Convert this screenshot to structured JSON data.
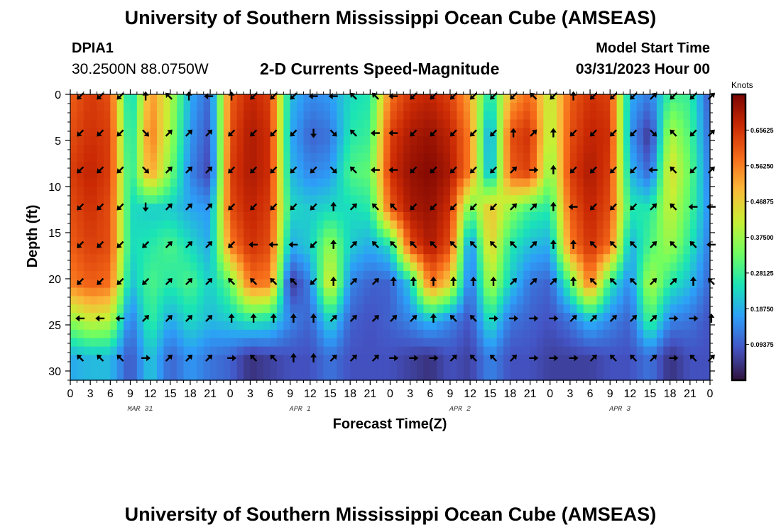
{
  "header": {
    "title": "University of Southern Mississippi Ocean Cube (AMSEAS)",
    "station_id": "DPIA1",
    "coordinates": "30.2500N  88.0750W",
    "subtitle": "2-D Currents Speed-Magnitude",
    "model_start_label": "Model Start Time",
    "model_start_value": "03/31/2023 Hour 00"
  },
  "footer": {
    "title": "University of Southern Mississippi Ocean Cube (AMSEAS)"
  },
  "colorbar": {
    "unit": "Knots",
    "ticks": [
      "0.65625",
      "0.56250",
      "0.46875",
      "0.37500",
      "0.28125",
      "0.18750",
      "0.09375"
    ],
    "tick_values": [
      0.65625,
      0.5625,
      0.46875,
      0.375,
      0.28125,
      0.1875,
      0.09375
    ],
    "range": [
      0,
      0.75
    ],
    "stops": [
      "#30123b",
      "#4454c4",
      "#2d9ef8",
      "#1ae4b6",
      "#71fe5f",
      "#c8ef34",
      "#faba39",
      "#f66b19",
      "#cb2a04",
      "#7a0403"
    ]
  },
  "chart_data": {
    "type": "heatmap",
    "title": "2-D Currents Speed-Magnitude",
    "xlabel": "Forecast Time(Z)",
    "ylabel": "Depth (ft)",
    "x_range_hours": [
      0,
      96
    ],
    "ylim": [
      0,
      31
    ],
    "y_ticks": [
      "0",
      "5",
      "10",
      "15",
      "20",
      "25",
      "30"
    ],
    "y_tick_values": [
      0,
      5,
      10,
      15,
      20,
      25,
      30
    ],
    "x_tick_labels": [
      "0",
      "3",
      "6",
      "9",
      "12",
      "15",
      "18",
      "21",
      "0",
      "3",
      "6",
      "9",
      "12",
      "15",
      "18",
      "21",
      "0",
      "3",
      "6",
      "9",
      "12",
      "15",
      "18",
      "21",
      "0",
      "3",
      "6",
      "9",
      "12",
      "15",
      "18",
      "21",
      "0"
    ],
    "date_labels": [
      {
        "label": "MAR 31",
        "hour": 10.5
      },
      {
        "label": "APR 1",
        "hour": 34.5
      },
      {
        "label": "APR 2",
        "hour": 58.5
      },
      {
        "label": "APR 3",
        "hour": 82.5
      }
    ],
    "depth_rows": [
      0.5,
      4.5,
      8.5,
      12.5,
      16.5,
      20.5,
      24.5,
      28.5
    ],
    "time_hours": [
      0,
      3,
      6,
      9,
      12,
      15,
      18,
      21,
      24,
      27,
      30,
      33,
      36,
      39,
      42,
      45,
      48,
      51,
      54,
      57,
      60,
      63,
      66,
      69,
      72,
      75,
      78,
      81,
      84,
      87,
      90,
      93,
      96
    ],
    "speed_knots": [
      [
        0.6,
        0.65,
        0.62,
        0.2,
        0.55,
        0.4,
        0.18,
        0.1,
        0.6,
        0.68,
        0.64,
        0.2,
        0.14,
        0.16,
        0.24,
        0.26,
        0.58,
        0.66,
        0.68,
        0.64,
        0.52,
        0.22,
        0.52,
        0.6,
        0.4,
        0.6,
        0.66,
        0.64,
        0.18,
        0.12,
        0.3,
        0.28,
        0.08
      ],
      [
        0.62,
        0.66,
        0.64,
        0.22,
        0.58,
        0.38,
        0.16,
        0.08,
        0.62,
        0.7,
        0.66,
        0.18,
        0.1,
        0.12,
        0.26,
        0.28,
        0.64,
        0.7,
        0.72,
        0.68,
        0.56,
        0.14,
        0.62,
        0.66,
        0.38,
        0.62,
        0.68,
        0.66,
        0.16,
        0.04,
        0.4,
        0.3,
        0.1
      ],
      [
        0.64,
        0.68,
        0.64,
        0.24,
        0.54,
        0.34,
        0.14,
        0.06,
        0.64,
        0.7,
        0.66,
        0.2,
        0.14,
        0.16,
        0.3,
        0.32,
        0.66,
        0.72,
        0.74,
        0.7,
        0.56,
        0.16,
        0.6,
        0.64,
        0.34,
        0.64,
        0.7,
        0.64,
        0.2,
        0.1,
        0.46,
        0.32,
        0.12
      ],
      [
        0.62,
        0.66,
        0.62,
        0.24,
        0.22,
        0.22,
        0.18,
        0.16,
        0.62,
        0.68,
        0.64,
        0.24,
        0.22,
        0.24,
        0.24,
        0.26,
        0.6,
        0.7,
        0.72,
        0.66,
        0.3,
        0.5,
        0.36,
        0.28,
        0.26,
        0.6,
        0.68,
        0.62,
        0.26,
        0.26,
        0.42,
        0.3,
        0.14
      ],
      [
        0.6,
        0.64,
        0.62,
        0.24,
        0.26,
        0.3,
        0.24,
        0.18,
        0.56,
        0.66,
        0.62,
        0.18,
        0.22,
        0.38,
        0.22,
        0.18,
        0.24,
        0.62,
        0.7,
        0.62,
        0.12,
        0.48,
        0.26,
        0.2,
        0.18,
        0.56,
        0.66,
        0.58,
        0.18,
        0.3,
        0.38,
        0.26,
        0.12
      ],
      [
        0.56,
        0.6,
        0.58,
        0.2,
        0.3,
        0.26,
        0.3,
        0.22,
        0.32,
        0.58,
        0.56,
        0.04,
        0.14,
        0.46,
        0.14,
        0.1,
        0.1,
        0.22,
        0.58,
        0.46,
        0.1,
        0.4,
        0.22,
        0.12,
        0.1,
        0.3,
        0.58,
        0.26,
        0.14,
        0.4,
        0.26,
        0.2,
        0.1
      ],
      [
        0.36,
        0.42,
        0.4,
        0.12,
        0.28,
        0.18,
        0.24,
        0.2,
        0.22,
        0.26,
        0.24,
        0.14,
        0.1,
        0.24,
        0.1,
        0.08,
        0.1,
        0.14,
        0.2,
        0.14,
        0.08,
        0.26,
        0.12,
        0.1,
        0.08,
        0.12,
        0.2,
        0.14,
        0.1,
        0.3,
        0.14,
        0.12,
        0.08
      ],
      [
        0.18,
        0.2,
        0.2,
        0.08,
        0.22,
        0.1,
        0.16,
        0.12,
        0.1,
        0.04,
        0.06,
        0.08,
        0.08,
        0.12,
        0.08,
        0.08,
        0.08,
        0.06,
        0.04,
        0.08,
        0.06,
        0.14,
        0.08,
        0.08,
        0.06,
        0.06,
        0.06,
        0.08,
        0.08,
        0.12,
        0.04,
        0.08,
        0.08
      ]
    ],
    "arrow_rows_depth": [
      0.2,
      4.2,
      8.2,
      12.2,
      16.3,
      20.3,
      24.3,
      28.6
    ],
    "arrow_columns_hours": [
      1.5,
      4.5,
      7.5,
      11.3,
      14.8,
      17.8,
      20.8,
      24.2,
      27.5,
      30.5,
      33.5,
      36.5,
      39.5,
      42.5,
      45.8,
      48.5,
      51.5,
      54.5,
      57.5,
      60.5,
      63.5,
      66.5,
      69.5,
      72.5,
      75.5,
      78.5,
      81.5,
      84.5,
      87.5,
      90.5,
      93.5,
      96.2
    ],
    "arrow_direction_deg": [
      [
        225,
        225,
        225,
        90,
        135,
        90,
        180,
        90,
        225,
        225,
        225,
        180,
        180,
        135,
        135,
        180,
        225,
        225,
        225,
        225,
        225,
        225,
        135,
        225,
        90,
        225,
        225,
        225,
        45,
        225,
        225,
        45
      ],
      [
        225,
        225,
        225,
        315,
        45,
        45,
        45,
        225,
        225,
        225,
        225,
        270,
        315,
        135,
        180,
        180,
        225,
        225,
        225,
        225,
        225,
        90,
        45,
        90,
        225,
        225,
        225,
        225,
        315,
        135,
        225,
        45
      ],
      [
        225,
        225,
        225,
        315,
        45,
        45,
        45,
        225,
        225,
        225,
        225,
        225,
        315,
        135,
        180,
        180,
        225,
        225,
        225,
        225,
        225,
        45,
        0,
        90,
        225,
        225,
        225,
        225,
        180,
        135,
        225,
        45
      ],
      [
        225,
        225,
        225,
        270,
        45,
        45,
        45,
        225,
        225,
        225,
        225,
        225,
        90,
        45,
        135,
        135,
        225,
        225,
        225,
        225,
        225,
        45,
        45,
        90,
        180,
        225,
        225,
        225,
        45,
        135,
        180,
        180
      ],
      [
        225,
        225,
        225,
        225,
        45,
        45,
        45,
        225,
        180,
        180,
        180,
        225,
        90,
        45,
        135,
        135,
        135,
        135,
        135,
        135,
        135,
        135,
        45,
        90,
        90,
        135,
        135,
        135,
        45,
        135,
        135,
        180
      ],
      [
        225,
        225,
        225,
        225,
        45,
        45,
        45,
        135,
        135,
        135,
        135,
        225,
        90,
        45,
        45,
        90,
        90,
        90,
        90,
        90,
        90,
        45,
        45,
        45,
        90,
        135,
        135,
        135,
        45,
        45,
        90,
        135
      ],
      [
        180,
        180,
        180,
        45,
        45,
        45,
        45,
        90,
        90,
        90,
        90,
        90,
        45,
        45,
        45,
        45,
        45,
        90,
        135,
        135,
        0,
        0,
        0,
        0,
        45,
        45,
        45,
        45,
        45,
        0,
        0,
        90
      ],
      [
        135,
        135,
        135,
        0,
        45,
        45,
        45,
        0,
        135,
        135,
        90,
        90,
        45,
        45,
        45,
        0,
        0,
        0,
        45,
        135,
        135,
        45,
        0,
        0,
        0,
        45,
        135,
        135,
        45,
        0,
        135,
        45
      ]
    ]
  }
}
